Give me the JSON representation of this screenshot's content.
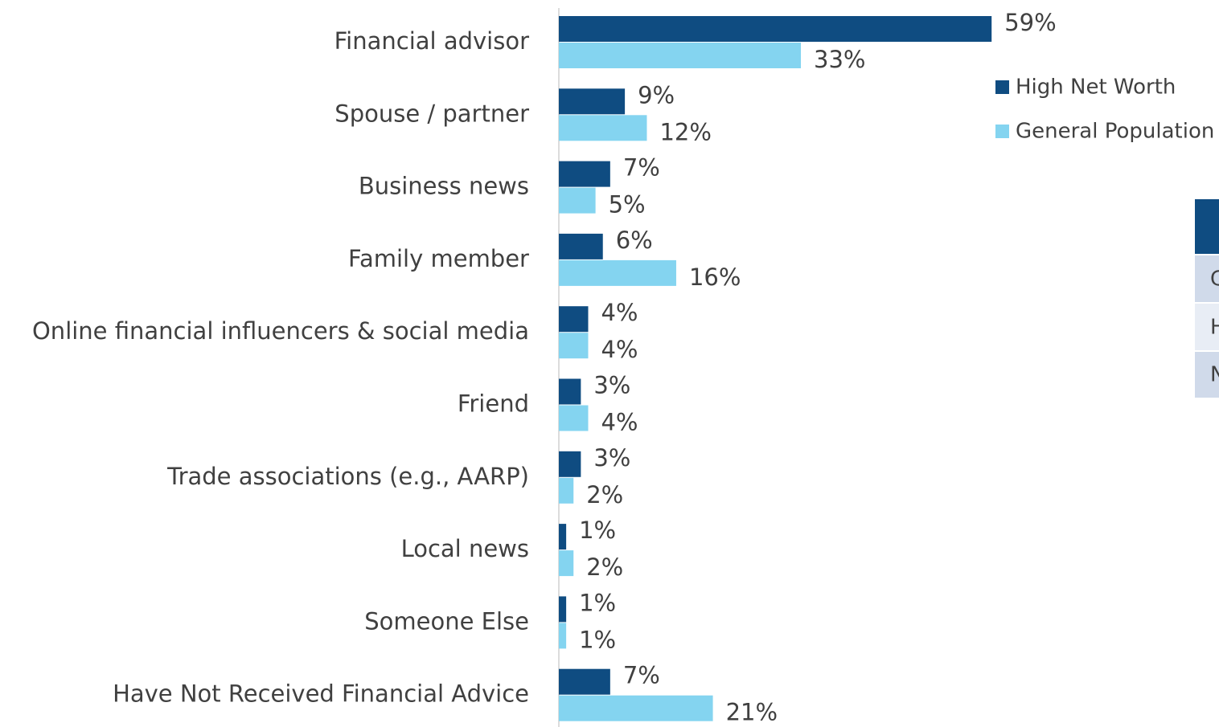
{
  "chart_data": {
    "type": "barh",
    "categories": [
      "Financial advisor",
      "Spouse / partner",
      "Business news",
      "Family member",
      "Online financial influencers & social media",
      "Friend",
      "Trade associations (e.g., AARP)",
      "Local news",
      "Someone Else",
      "Have Not Received Financial Advice"
    ],
    "series": [
      {
        "name": "High Net Worth",
        "color": "#0f4c81",
        "values": [
          59,
          9,
          7,
          6,
          4,
          3,
          3,
          1,
          1,
          7
        ],
        "value_labels": [
          "59%",
          "9%",
          "7%",
          "6%",
          "4%",
          "3%",
          "3%",
          "1%",
          "1%",
          "7%"
        ]
      },
      {
        "name": "General Population",
        "color": "#84d4f0",
        "values": [
          33,
          12,
          5,
          16,
          4,
          4,
          2,
          2,
          1,
          21
        ],
        "value_labels": [
          "33%",
          "12%",
          "5%",
          "16%",
          "4%",
          "4%",
          "2%",
          "2%",
          "1%",
          "21%"
        ]
      }
    ],
    "xlim": [
      0,
      90
    ],
    "legend": "upper right"
  },
  "side_table": {
    "rows": [
      "G",
      "H",
      "N"
    ]
  }
}
